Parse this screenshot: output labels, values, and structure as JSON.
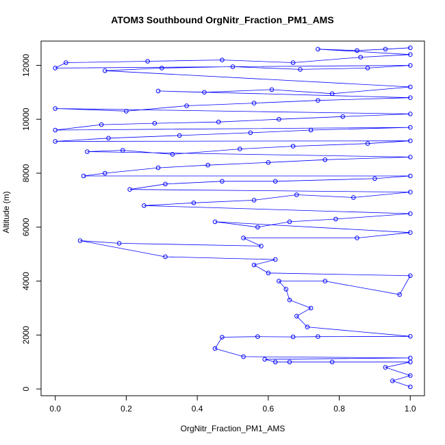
{
  "chart_data": {
    "type": "scatter",
    "title": "ATOM3 Southbound OrgNitr_Fraction_PM1_AMS",
    "xlabel": "OrgNitr_Fraction_PM1_AMS",
    "ylabel": "Altitude (m)",
    "xlim": [
      -0.04,
      1.04
    ],
    "ylim": [
      -250,
      12900
    ],
    "x_ticks": [
      0.0,
      0.2,
      0.4,
      0.6,
      0.8,
      1.0
    ],
    "x_tick_labels": [
      "0.0",
      "0.2",
      "0.4",
      "0.6",
      "0.8",
      "1.0"
    ],
    "y_ticks": [
      0,
      2000,
      4000,
      6000,
      8000,
      10000,
      12000
    ],
    "y_tick_labels": [
      "0",
      "2000",
      "4000",
      "6000",
      "8000",
      "10000",
      "12000"
    ],
    "grid": false,
    "series": [
      {
        "color": "#0000ff",
        "marker": "open-circle",
        "connected": true,
        "points": [
          [
            1.0,
            80
          ],
          [
            0.95,
            300
          ],
          [
            1.0,
            500
          ],
          [
            0.93,
            800
          ],
          [
            1.0,
            1000
          ],
          [
            0.78,
            1000
          ],
          [
            0.66,
            1000
          ],
          [
            0.62,
            1000
          ],
          [
            0.59,
            1100
          ],
          [
            1.0,
            1150
          ],
          [
            0.53,
            1200
          ],
          [
            0.45,
            1500
          ],
          [
            0.47,
            1920
          ],
          [
            0.57,
            1940
          ],
          [
            0.67,
            1930
          ],
          [
            0.74,
            1940
          ],
          [
            1.0,
            1950
          ],
          [
            0.71,
            2300
          ],
          [
            0.68,
            2700
          ],
          [
            0.72,
            3000
          ],
          [
            0.66,
            3300
          ],
          [
            0.65,
            3700
          ],
          [
            0.63,
            4000
          ],
          [
            0.76,
            4000
          ],
          [
            0.97,
            3500
          ],
          [
            1.0,
            4200
          ],
          [
            0.6,
            4300
          ],
          [
            0.56,
            4600
          ],
          [
            0.62,
            4800
          ],
          [
            0.31,
            4900
          ],
          [
            0.07,
            5500
          ],
          [
            0.18,
            5400
          ],
          [
            0.58,
            5300
          ],
          [
            0.53,
            5600
          ],
          [
            0.85,
            5600
          ],
          [
            1.0,
            5800
          ],
          [
            0.45,
            6200
          ],
          [
            0.57,
            6000
          ],
          [
            0.66,
            6200
          ],
          [
            0.79,
            6300
          ],
          [
            1.0,
            6500
          ],
          [
            0.25,
            6800
          ],
          [
            0.39,
            6900
          ],
          [
            0.56,
            7000
          ],
          [
            0.68,
            7200
          ],
          [
            0.84,
            7100
          ],
          [
            1.0,
            7300
          ],
          [
            0.21,
            7400
          ],
          [
            0.31,
            7600
          ],
          [
            0.47,
            7700
          ],
          [
            0.62,
            7700
          ],
          [
            0.9,
            7800
          ],
          [
            1.0,
            7900
          ],
          [
            0.08,
            7900
          ],
          [
            0.14,
            8000
          ],
          [
            0.29,
            8200
          ],
          [
            0.43,
            8300
          ],
          [
            0.6,
            8400
          ],
          [
            0.76,
            8500
          ],
          [
            1.0,
            8600
          ],
          [
            0.09,
            8800
          ],
          [
            0.19,
            8850
          ],
          [
            0.33,
            8700
          ],
          [
            0.52,
            8900
          ],
          [
            0.67,
            9000
          ],
          [
            0.88,
            9100
          ],
          [
            1.0,
            9200
          ],
          [
            0.0,
            9180
          ],
          [
            0.15,
            9300
          ],
          [
            0.35,
            9400
          ],
          [
            0.55,
            9500
          ],
          [
            0.72,
            9600
          ],
          [
            1.0,
            9700
          ],
          [
            0.0,
            9600
          ],
          [
            0.13,
            9800
          ],
          [
            0.28,
            9850
          ],
          [
            0.46,
            9900
          ],
          [
            0.63,
            10000
          ],
          [
            0.81,
            10100
          ],
          [
            1.0,
            10200
          ],
          [
            0.0,
            10400
          ],
          [
            0.2,
            10300
          ],
          [
            0.37,
            10500
          ],
          [
            0.56,
            10600
          ],
          [
            0.74,
            10700
          ],
          [
            1.0,
            10800
          ],
          [
            0.29,
            11050
          ],
          [
            0.42,
            11000
          ],
          [
            0.61,
            11100
          ],
          [
            0.78,
            10950
          ],
          [
            1.0,
            11200
          ],
          [
            0.14,
            11800
          ],
          [
            0.3,
            11900
          ],
          [
            0.5,
            11950
          ],
          [
            0.69,
            11850
          ],
          [
            0.88,
            11900
          ],
          [
            1.0,
            12000
          ],
          [
            0.0,
            11900
          ],
          [
            0.03,
            12100
          ],
          [
            0.26,
            12150
          ],
          [
            0.47,
            12200
          ],
          [
            0.67,
            12100
          ],
          [
            0.86,
            12300
          ],
          [
            1.0,
            12400
          ],
          [
            0.74,
            12600
          ],
          [
            0.85,
            12550
          ],
          [
            0.93,
            12600
          ],
          [
            1.0,
            12650
          ]
        ]
      }
    ]
  }
}
